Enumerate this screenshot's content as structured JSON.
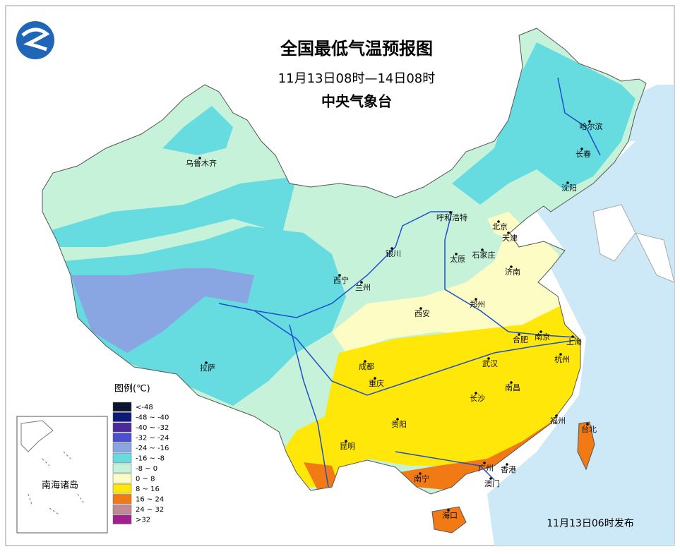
{
  "header": {
    "title": "全国最低气温预报图",
    "subtitle": "11月13日08时—14日08时",
    "issuer": "中央气象台"
  },
  "legend": {
    "title": "图例(℃)",
    "items": [
      {
        "label": "<-48",
        "color": "#0b1530"
      },
      {
        "label": "-48 ~ -40",
        "color": "#0d1a7a"
      },
      {
        "label": "-40 ~ -32",
        "color": "#4b2a9c"
      },
      {
        "label": "-32 ~ -24",
        "color": "#4c4fd0"
      },
      {
        "label": "-24 ~ -16",
        "color": "#8aa6e2"
      },
      {
        "label": "-16 ~ -8",
        "color": "#66dbe0"
      },
      {
        "label": "-8 ~ 0",
        "color": "#c6f2da"
      },
      {
        "label": "0 ~ 8",
        "color": "#fdfcc4"
      },
      {
        "label": "8 ~ 16",
        "color": "#ffe70a"
      },
      {
        "label": "16 ~ 24",
        "color": "#f27a14"
      },
      {
        "label": "24 ~ 32",
        "color": "#c28a90"
      },
      {
        "label": ">32",
        "color": "#a0208c"
      }
    ]
  },
  "cities": [
    "乌鲁木齐",
    "哈尔滨",
    "长春",
    "沈阳",
    "呼和浩特",
    "北京",
    "天津",
    "银川",
    "石家庄",
    "太原",
    "济南",
    "西宁",
    "兰州",
    "郑州",
    "西安",
    "合肥",
    "南京",
    "上海",
    "拉萨",
    "成都",
    "武汉",
    "杭州",
    "重庆",
    "南昌",
    "长沙",
    "福州",
    "贵阳",
    "台北",
    "昆明",
    "南宁",
    "广州",
    "香港",
    "澳门",
    "海口"
  ],
  "inset": {
    "label": "南海诸岛"
  },
  "release_note": "11月13日06时发布"
}
